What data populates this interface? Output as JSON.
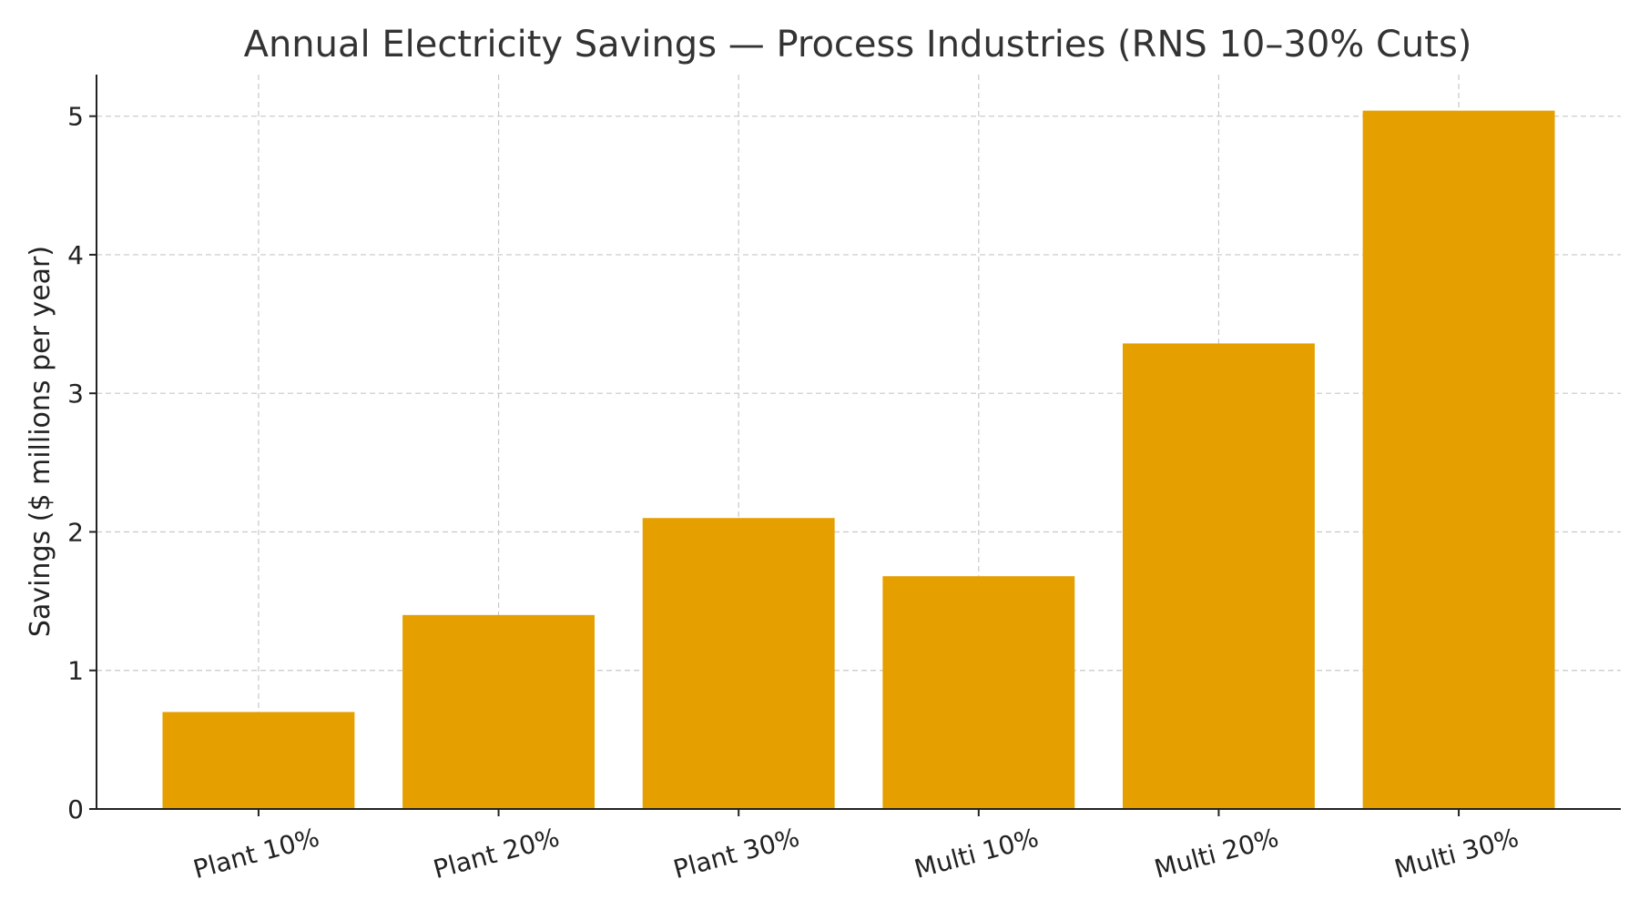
{
  "chart_data": {
    "type": "bar",
    "title": "Annual Electricity Savings — Process Industries (RNS 10–30% Cuts)",
    "xlabel": "",
    "ylabel": "Savings ($ millions per year)",
    "categories": [
      "Plant 10%",
      "Plant 20%",
      "Plant 30%",
      "Multi 10%",
      "Multi 20%",
      "Multi 30%"
    ],
    "values": [
      0.7,
      1.4,
      2.1,
      1.68,
      3.36,
      5.04
    ],
    "ylim": [
      0,
      5.3
    ],
    "yticks": [
      "0",
      "1",
      "2",
      "3",
      "4",
      "5"
    ],
    "grid": true,
    "bar_color": "#e5a000"
  }
}
